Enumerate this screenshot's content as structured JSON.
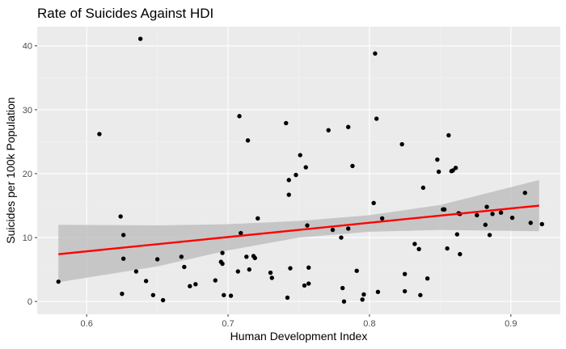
{
  "chart_data": {
    "type": "scatter",
    "title": "Rate of Suicides Against HDI",
    "xlabel": "Human Development Index",
    "ylabel": "Suicides per 100k Population",
    "xlim": [
      0.565,
      0.935
    ],
    "ylim": [
      -2.0,
      43.0
    ],
    "x_ticks": [
      0.6,
      0.7,
      0.8,
      0.9
    ],
    "y_ticks": [
      0,
      10,
      20,
      30,
      40
    ],
    "x_tick_labels": [
      "0.6",
      "0.7",
      "0.8",
      "0.9"
    ],
    "y_tick_labels": [
      "0",
      "10",
      "20",
      "30",
      "40"
    ],
    "grid": true,
    "legend": "none",
    "colors": {
      "panel": "#ebebeb",
      "grid_major": "#ffffff",
      "grid_minor": "#f2f2f2",
      "points": "#000000",
      "trend_line": "#ff0000",
      "confidence_band": "#bdbdbd"
    },
    "trend": {
      "method": "linear",
      "x": [
        0.58,
        0.92
      ],
      "y": [
        7.4,
        15.0
      ],
      "band": {
        "x": [
          0.58,
          0.65,
          0.7,
          0.75,
          0.8,
          0.85,
          0.92
        ],
        "lower": [
          3.0,
          5.5,
          8.0,
          10.0,
          10.9,
          11.2,
          11.0
        ],
        "upper": [
          12.0,
          11.9,
          12.1,
          12.6,
          13.5,
          15.1,
          19.0
        ]
      }
    },
    "points": {
      "x": [
        0.58,
        0.609,
        0.624,
        0.625,
        0.626,
        0.626,
        0.635,
        0.638,
        0.642,
        0.647,
        0.65,
        0.654,
        0.667,
        0.669,
        0.673,
        0.677,
        0.691,
        0.695,
        0.696,
        0.696,
        0.697,
        0.702,
        0.707,
        0.708,
        0.709,
        0.713,
        0.714,
        0.715,
        0.718,
        0.719,
        0.721,
        0.73,
        0.731,
        0.741,
        0.742,
        0.743,
        0.743,
        0.744,
        0.748,
        0.751,
        0.754,
        0.755,
        0.756,
        0.757,
        0.757,
        0.771,
        0.774,
        0.78,
        0.781,
        0.782,
        0.785,
        0.785,
        0.788,
        0.791,
        0.795,
        0.796,
        0.803,
        0.804,
        0.805,
        0.806,
        0.809,
        0.823,
        0.825,
        0.825,
        0.832,
        0.835,
        0.836,
        0.838,
        0.841,
        0.848,
        0.849,
        0.852,
        0.853,
        0.855,
        0.856,
        0.858,
        0.859,
        0.861,
        0.862,
        0.863,
        0.864,
        0.864,
        0.876,
        0.882,
        0.883,
        0.885,
        0.887,
        0.893,
        0.901,
        0.91,
        0.914,
        0.922
      ],
      "y": [
        3.1,
        26.2,
        13.3,
        1.2,
        6.7,
        10.4,
        4.7,
        41.1,
        3.2,
        1.0,
        6.6,
        0.2,
        7.0,
        5.4,
        2.4,
        2.7,
        3.3,
        6.2,
        5.9,
        7.6,
        1.0,
        0.9,
        4.7,
        29.0,
        10.7,
        7.0,
        25.2,
        5.0,
        7.1,
        6.8,
        13.0,
        4.5,
        3.7,
        27.9,
        0.6,
        19.0,
        16.7,
        5.2,
        19.8,
        22.9,
        2.5,
        21.0,
        11.9,
        5.3,
        2.8,
        26.8,
        11.2,
        10.0,
        2.1,
        0.0,
        11.4,
        27.3,
        21.2,
        4.8,
        0.3,
        1.1,
        15.4,
        38.8,
        28.6,
        1.5,
        13.0,
        24.6,
        4.3,
        1.6,
        9.0,
        8.2,
        1.0,
        17.8,
        3.6,
        22.2,
        20.3,
        14.4,
        14.4,
        8.3,
        26.0,
        20.4,
        20.5,
        20.9,
        10.5,
        13.8,
        7.4,
        13.7,
        13.5,
        12.0,
        14.8,
        10.4,
        13.7,
        13.9,
        13.1,
        17.0,
        12.3,
        12.1
      ]
    }
  }
}
